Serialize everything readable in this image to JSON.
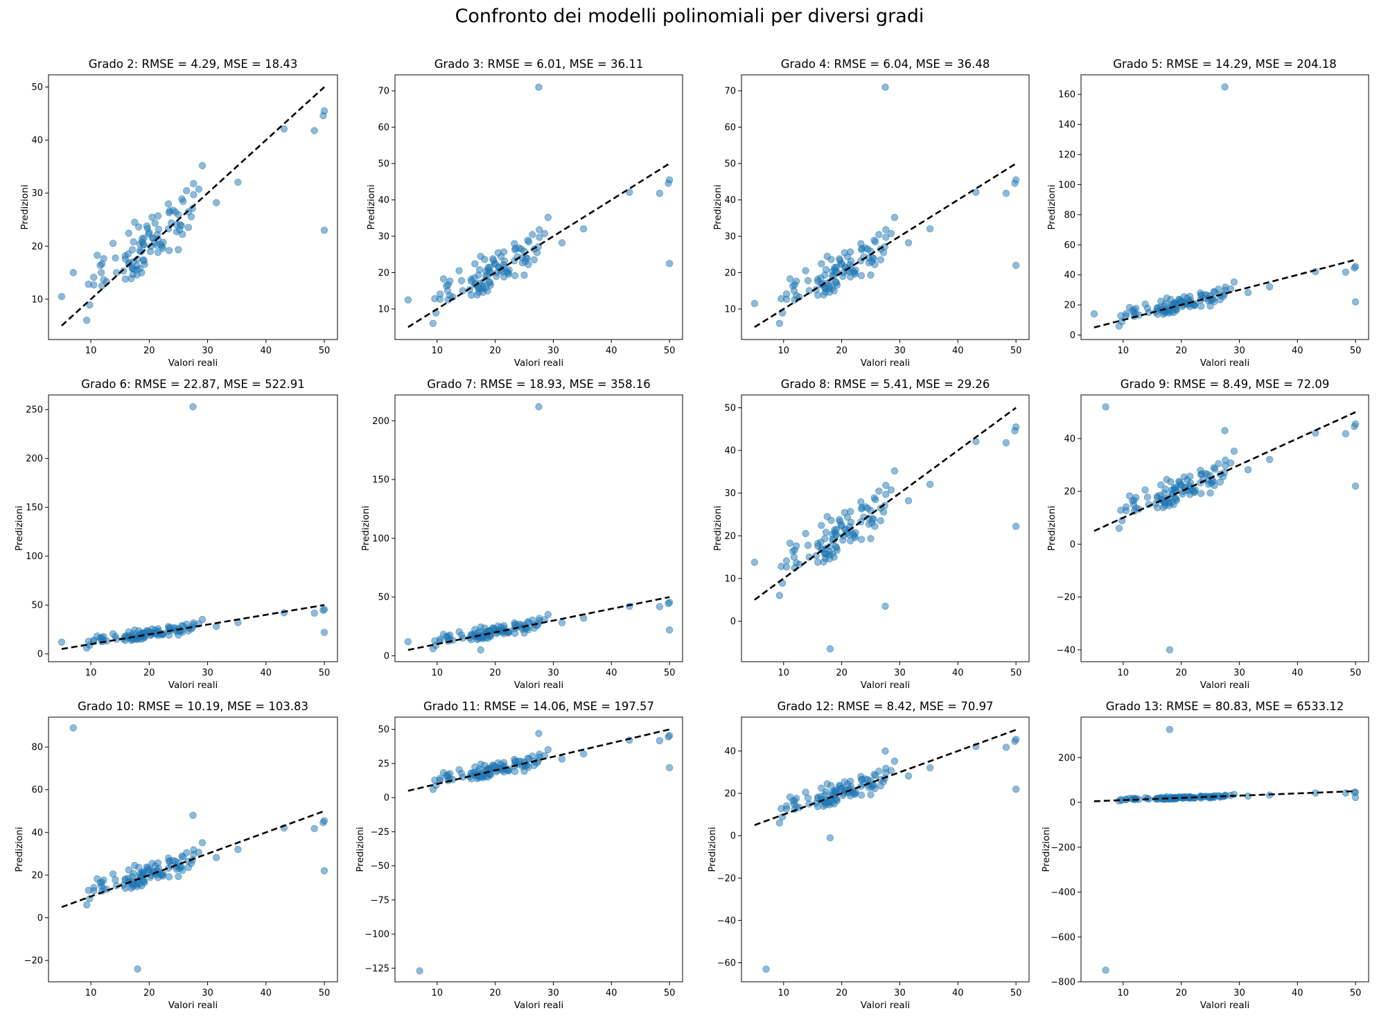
{
  "figure": {
    "title": "Confronto dei modelli polinomiali per diversi gradi"
  },
  "colors": {
    "points": "#1f77b4",
    "reference_line": "#000000"
  },
  "chart_data": [
    {
      "type": "scatter",
      "title": "Grado 2: RMSE = 4.29, MSE = 18.43",
      "xlabel": "Valori reali",
      "ylabel": "Predizioni",
      "xlim": [
        2.75,
        52.25
      ],
      "ylim": [
        2.4,
        52.3
      ],
      "xticks": [
        10,
        20,
        30,
        40,
        50
      ],
      "yticks": [
        10,
        20,
        30,
        40,
        50
      ],
      "outliers": [
        [
          50,
          23
        ],
        [
          5,
          10.5
        ],
        [
          7,
          15
        ]
      ]
    },
    {
      "type": "scatter",
      "title": "Grado 3: RMSE = 6.01, MSE = 36.11",
      "xlabel": "Valori reali",
      "ylabel": "Predizioni",
      "xlim": [
        2.75,
        52.25
      ],
      "ylim": [
        1.6,
        74.4
      ],
      "xticks": [
        10,
        20,
        30,
        40,
        50
      ],
      "yticks": [
        10,
        20,
        30,
        40,
        50,
        60,
        70
      ],
      "outliers": [
        [
          27.5,
          71
        ],
        [
          50,
          22.5
        ],
        [
          5,
          12.5
        ]
      ]
    },
    {
      "type": "scatter",
      "title": "Grado 4: RMSE = 6.04, MSE = 36.48",
      "xlabel": "Valori reali",
      "ylabel": "Predizioni",
      "xlim": [
        2.75,
        52.25
      ],
      "ylim": [
        1.6,
        74.4
      ],
      "xticks": [
        10,
        20,
        30,
        40,
        50
      ],
      "yticks": [
        10,
        20,
        30,
        40,
        50,
        60,
        70
      ],
      "outliers": [
        [
          27.5,
          71
        ],
        [
          50,
          22
        ],
        [
          5,
          11.5
        ]
      ]
    },
    {
      "type": "scatter",
      "title": "Grado 5: RMSE = 14.29, MSE = 204.18",
      "xlabel": "Valori reali",
      "ylabel": "Predizioni",
      "xlim": [
        2.75,
        52.25
      ],
      "ylim": [
        -3,
        173
      ],
      "xticks": [
        10,
        20,
        30,
        40,
        50
      ],
      "yticks": [
        0,
        20,
        40,
        60,
        80,
        100,
        120,
        140,
        160
      ],
      "outliers": [
        [
          27.5,
          165
        ],
        [
          50,
          22
        ],
        [
          5,
          14
        ]
      ]
    },
    {
      "type": "scatter",
      "title": "Grado 6: RMSE = 22.87, MSE = 522.91",
      "xlabel": "Valori reali",
      "ylabel": "Predizioni",
      "xlim": [
        2.75,
        52.25
      ],
      "ylim": [
        -8,
        265
      ],
      "xticks": [
        10,
        20,
        30,
        40,
        50
      ],
      "yticks": [
        0,
        50,
        100,
        150,
        200,
        250
      ],
      "outliers": [
        [
          27.5,
          253
        ],
        [
          50,
          22
        ],
        [
          5,
          12
        ]
      ]
    },
    {
      "type": "scatter",
      "title": "Grado 7: RMSE = 18.93, MSE = 358.16",
      "xlabel": "Valori reali",
      "ylabel": "Predizioni",
      "xlim": [
        2.75,
        52.25
      ],
      "ylim": [
        -5,
        222
      ],
      "xticks": [
        10,
        20,
        30,
        40,
        50
      ],
      "yticks": [
        0,
        50,
        100,
        150,
        200
      ],
      "outliers": [
        [
          27.5,
          212
        ],
        [
          50,
          22
        ],
        [
          17.5,
          5
        ],
        [
          5,
          12
        ]
      ]
    },
    {
      "type": "scatter",
      "title": "Grado 8: RMSE = 5.41, MSE = 29.26",
      "xlabel": "Valori reali",
      "ylabel": "Predizioni",
      "xlim": [
        2.75,
        52.25
      ],
      "ylim": [
        -9.5,
        53
      ],
      "xticks": [
        10,
        20,
        30,
        40,
        50
      ],
      "yticks": [
        0,
        10,
        20,
        30,
        40,
        50
      ],
      "outliers": [
        [
          18,
          -6.5
        ],
        [
          27.5,
          3.5
        ],
        [
          50,
          22.2
        ],
        [
          5,
          13.8
        ]
      ]
    },
    {
      "type": "scatter",
      "title": "Grado 9: RMSE = 8.49, MSE = 72.09",
      "xlabel": "Valori reali",
      "ylabel": "Predizioni",
      "xlim": [
        2.75,
        52.25
      ],
      "ylim": [
        -44.5,
        56.5
      ],
      "xticks": [
        10,
        20,
        30,
        40,
        50
      ],
      "yticks": [
        -40,
        -20,
        0,
        20,
        40
      ],
      "outliers": [
        [
          7,
          52
        ],
        [
          18,
          -40
        ],
        [
          50,
          22
        ],
        [
          27.5,
          43
        ]
      ]
    },
    {
      "type": "scatter",
      "title": "Grado 10: RMSE = 10.19, MSE = 103.83",
      "xlabel": "Valori reali",
      "ylabel": "Predizioni",
      "xlim": [
        2.75,
        52.25
      ],
      "ylim": [
        -30,
        94
      ],
      "xticks": [
        10,
        20,
        30,
        40,
        50
      ],
      "yticks": [
        -20,
        0,
        20,
        40,
        60,
        80
      ],
      "outliers": [
        [
          7,
          89
        ],
        [
          18,
          -24
        ],
        [
          27.5,
          48
        ],
        [
          50,
          22
        ]
      ]
    },
    {
      "type": "scatter",
      "title": "Grado 11: RMSE = 14.06, MSE = 197.57",
      "xlabel": "Valori reali",
      "ylabel": "Predizioni",
      "xlim": [
        2.75,
        52.25
      ],
      "ylim": [
        -135,
        59
      ],
      "xticks": [
        10,
        20,
        30,
        40,
        50
      ],
      "yticks": [
        -125,
        -100,
        -75,
        -50,
        -25,
        0,
        25,
        50
      ],
      "outliers": [
        [
          7,
          -127
        ],
        [
          27.5,
          47
        ],
        [
          50,
          22
        ]
      ]
    },
    {
      "type": "scatter",
      "title": "Grado 12: RMSE = 8.42, MSE = 70.97",
      "xlabel": "Valori reali",
      "ylabel": "Predizioni",
      "xlim": [
        2.75,
        52.25
      ],
      "ylim": [
        -69,
        56
      ],
      "xticks": [
        10,
        20,
        30,
        40,
        50
      ],
      "yticks": [
        -60,
        -40,
        -20,
        0,
        20,
        40
      ],
      "outliers": [
        [
          7,
          -63
        ],
        [
          18,
          -1
        ],
        [
          27.5,
          40
        ],
        [
          50,
          22
        ]
      ]
    },
    {
      "type": "scatter",
      "title": "Grado 13: RMSE = 80.83, MSE = 6533.12",
      "xlabel": "Valori reali",
      "ylabel": "Predizioni",
      "xlim": [
        2.75,
        52.25
      ],
      "ylim": [
        -800,
        380
      ],
      "xticks": [
        10,
        20,
        30,
        40,
        50
      ],
      "yticks": [
        -800,
        -600,
        -400,
        -200,
        0,
        200
      ],
      "outliers": [
        [
          7,
          -748
        ],
        [
          18,
          325
        ],
        [
          50,
          22
        ]
      ]
    }
  ]
}
